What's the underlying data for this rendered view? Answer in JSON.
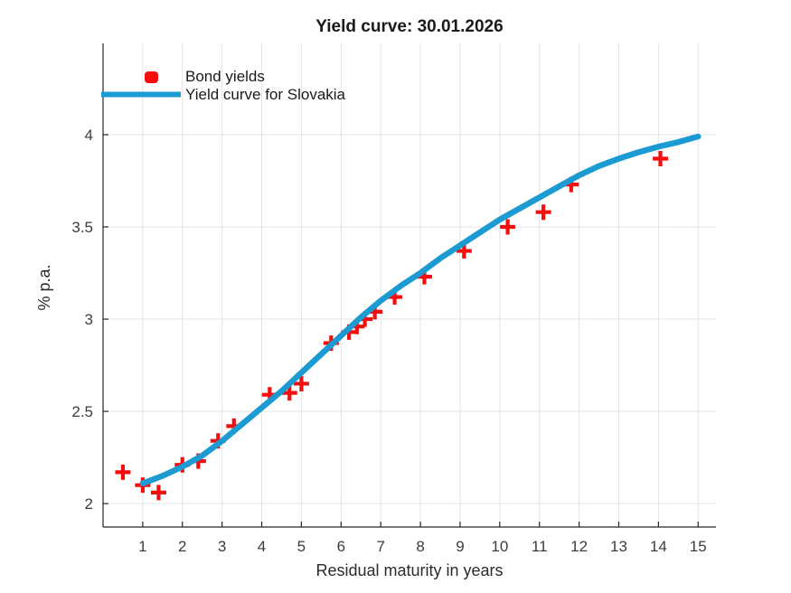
{
  "colors": {
    "marker_red": "#f40f0f",
    "curve_blue": "#1c9bd2",
    "grid": "#e4e4e4",
    "axis": "#262626",
    "text": "#2b2b2b",
    "background": "#ffffff"
  },
  "legend": [
    {
      "label": "Bond yields",
      "marker": "red-square",
      "color": "#f40f0f"
    },
    {
      "label": "Yield curve for Slovakia",
      "marker": "blue-line",
      "color": "#1c9bd2"
    }
  ],
  "chart_data": {
    "type": "scatter",
    "title": "Yield curve: 30.01.2026",
    "xlabel": "Residual maturity in years",
    "ylabel": "% p.a.",
    "xlim": [
      0,
      15.45
    ],
    "ylim": [
      1.873,
      4.495
    ],
    "xticks": [
      1,
      2,
      3,
      4,
      5,
      6,
      7,
      8,
      9,
      10,
      11,
      12,
      13,
      14,
      15
    ],
    "yticks": [
      2,
      2.5,
      3,
      3.5,
      4
    ],
    "grid": true,
    "legend_position": "northwest",
    "series": [
      {
        "name": "Bond yields",
        "type": "scatter",
        "marker": "plus",
        "color": "#f40f0f",
        "points": [
          [
            0.5,
            2.17
          ],
          [
            1.0,
            2.1
          ],
          [
            1.4,
            2.06
          ],
          [
            2.0,
            2.21
          ],
          [
            2.4,
            2.23
          ],
          [
            2.9,
            2.34
          ],
          [
            3.3,
            2.42
          ],
          [
            4.2,
            2.59
          ],
          [
            4.7,
            2.6
          ],
          [
            5.0,
            2.65
          ],
          [
            5.75,
            2.87
          ],
          [
            6.2,
            2.93
          ],
          [
            6.4,
            2.96
          ],
          [
            6.6,
            3.0
          ],
          [
            6.85,
            3.04
          ],
          [
            7.35,
            3.12
          ],
          [
            8.1,
            3.23
          ],
          [
            9.1,
            3.37
          ],
          [
            10.2,
            3.5
          ],
          [
            11.1,
            3.58
          ],
          [
            11.8,
            3.73
          ],
          [
            14.05,
            3.87
          ]
        ]
      },
      {
        "name": "Yield curve for Slovakia",
        "type": "line",
        "color": "#1c9bd2",
        "points": [
          [
            1.0,
            2.11
          ],
          [
            1.5,
            2.15
          ],
          [
            2.0,
            2.2
          ],
          [
            2.5,
            2.26
          ],
          [
            3.0,
            2.34
          ],
          [
            3.5,
            2.43
          ],
          [
            4.0,
            2.52
          ],
          [
            4.5,
            2.61
          ],
          [
            5.0,
            2.71
          ],
          [
            5.5,
            2.81
          ],
          [
            6.0,
            2.91
          ],
          [
            6.5,
            3.01
          ],
          [
            7.0,
            3.1
          ],
          [
            7.5,
            3.18
          ],
          [
            8.0,
            3.25
          ],
          [
            8.5,
            3.33
          ],
          [
            9.0,
            3.4
          ],
          [
            9.5,
            3.47
          ],
          [
            10.0,
            3.54
          ],
          [
            10.5,
            3.6
          ],
          [
            11.0,
            3.66
          ],
          [
            11.5,
            3.72
          ],
          [
            12.0,
            3.78
          ],
          [
            12.5,
            3.83
          ],
          [
            13.0,
            3.87
          ],
          [
            13.5,
            3.905
          ],
          [
            14.0,
            3.935
          ],
          [
            14.5,
            3.96
          ],
          [
            15.0,
            3.99
          ]
        ]
      }
    ]
  }
}
